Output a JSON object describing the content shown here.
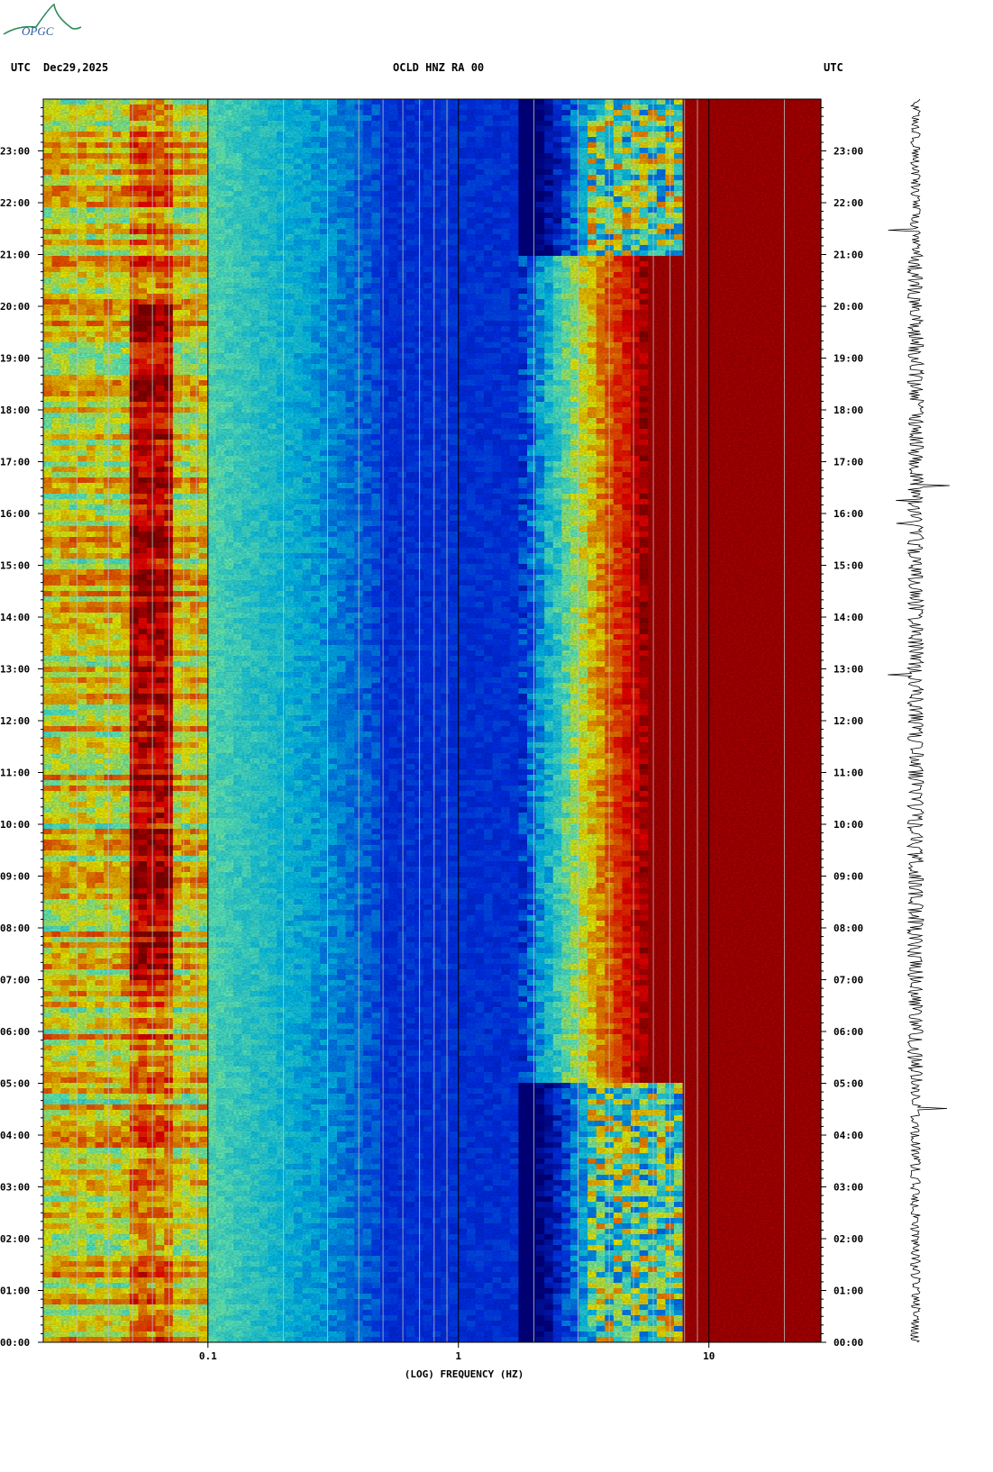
{
  "logo": {
    "text": "OPGC",
    "color": "#2c5aa0",
    "swoosh_color": "#2e8b57"
  },
  "header": {
    "left_tz": "UTC",
    "date": "Dec29,2025",
    "station": "OCLD HNZ RA 00",
    "right_tz": "UTC"
  },
  "chart_data": {
    "type": "heatmap",
    "title": "OCLD HNZ RA 00",
    "xlabel": "(LOG) FREQUENCY (HZ)",
    "x_scale": "log",
    "x_ticks": [
      0.1,
      1,
      10
    ],
    "x_tick_labels": [
      "0.1",
      "1",
      "10"
    ],
    "xlim": [
      0.022,
      28
    ],
    "ylabel": "UTC",
    "y_ticks": [
      "00:00",
      "01:00",
      "02:00",
      "03:00",
      "04:00",
      "05:00",
      "06:00",
      "07:00",
      "08:00",
      "09:00",
      "10:00",
      "11:00",
      "12:00",
      "13:00",
      "14:00",
      "15:00",
      "16:00",
      "17:00",
      "18:00",
      "19:00",
      "20:00",
      "21:00",
      "22:00",
      "23:00"
    ],
    "ylim_hours": [
      0,
      24
    ],
    "colormap": [
      "#00008b",
      "#0033ff",
      "#00ccff",
      "#66ffcc",
      "#ffff00",
      "#ff6600",
      "#ff0000",
      "#8b0000"
    ],
    "seismogram": "trace"
  }
}
